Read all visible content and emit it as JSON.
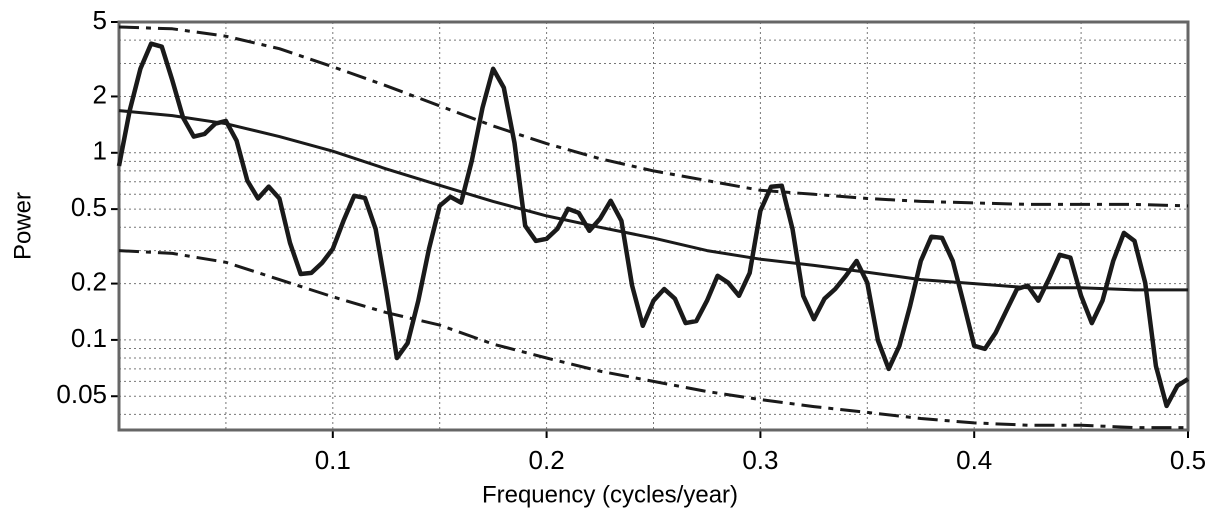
{
  "chart_data": {
    "type": "line",
    "xlabel": "Frequency (cycles/year)",
    "ylabel": "Power",
    "log_y": true,
    "grid": true,
    "xlim": [
      0,
      0.5
    ],
    "xticks": [
      0.1,
      0.2,
      0.3,
      0.4,
      0.5
    ],
    "xminor": [
      0.05,
      0.15,
      0.25,
      0.35,
      0.45
    ],
    "ylim": [
      0.033,
      5
    ],
    "yticks": [
      0.05,
      0.1,
      0.2,
      0.5,
      1,
      2,
      5
    ],
    "yminor": [
      0.04,
      0.06,
      0.07,
      0.08,
      0.09,
      0.3,
      0.4,
      0.6,
      0.7,
      0.8,
      0.9,
      3,
      4
    ],
    "series": [
      {
        "color": "#1a1a1a",
        "width": 4.5,
        "style": "solid",
        "x": [
          0,
          0.005,
          0.01,
          0.015,
          0.02,
          0.025,
          0.03,
          0.035,
          0.04,
          0.045,
          0.05,
          0.055,
          0.06,
          0.065,
          0.07,
          0.075,
          0.08,
          0.085,
          0.09,
          0.095,
          0.1,
          0.105,
          0.11,
          0.115,
          0.12,
          0.125,
          0.13,
          0.135,
          0.14,
          0.145,
          0.15,
          0.155,
          0.16,
          0.165,
          0.17,
          0.175,
          0.18,
          0.185,
          0.19,
          0.195,
          0.2,
          0.205,
          0.21,
          0.215,
          0.22,
          0.225,
          0.23,
          0.235,
          0.24,
          0.245,
          0.25,
          0.255,
          0.26,
          0.265,
          0.27,
          0.275,
          0.28,
          0.285,
          0.29,
          0.295,
          0.3,
          0.305,
          0.31,
          0.315,
          0.32,
          0.325,
          0.33,
          0.335,
          0.34,
          0.345,
          0.35,
          0.355,
          0.36,
          0.365,
          0.37,
          0.375,
          0.38,
          0.385,
          0.39,
          0.395,
          0.4,
          0.405,
          0.41,
          0.415,
          0.42,
          0.425,
          0.43,
          0.435,
          0.44,
          0.445,
          0.45,
          0.455,
          0.46,
          0.465,
          0.47,
          0.475,
          0.48,
          0.485,
          0.49,
          0.495,
          0.5
        ],
        "values": [
          0.85,
          1.68,
          2.81,
          3.83,
          3.69,
          2.43,
          1.54,
          1.22,
          1.26,
          1.43,
          1.48,
          1.16,
          0.71,
          0.57,
          0.66,
          0.57,
          0.33,
          0.225,
          0.228,
          0.258,
          0.307,
          0.433,
          0.589,
          0.574,
          0.392,
          0.183,
          0.08,
          0.096,
          0.162,
          0.307,
          0.521,
          0.582,
          0.541,
          0.906,
          1.74,
          2.81,
          2.23,
          1.13,
          0.407,
          0.338,
          0.347,
          0.392,
          0.502,
          0.478,
          0.383,
          0.444,
          0.554,
          0.433,
          0.195,
          0.119,
          0.162,
          0.187,
          0.166,
          0.123,
          0.126,
          0.162,
          0.22,
          0.202,
          0.172,
          0.228,
          0.49,
          0.658,
          0.666,
          0.392,
          0.172,
          0.129,
          0.166,
          0.187,
          0.22,
          0.264,
          0.202,
          0.099,
          0.07,
          0.093,
          0.152,
          0.264,
          0.356,
          0.351,
          0.264,
          0.158,
          0.093,
          0.0895,
          0.109,
          0.143,
          0.187,
          0.195,
          0.162,
          0.212,
          0.285,
          0.275,
          0.172,
          0.123,
          0.162,
          0.264,
          0.373,
          0.338,
          0.202,
          0.0726,
          0.0444,
          0.0568,
          0.0618
        ]
      },
      {
        "color": "#1a1a1a",
        "width": 3,
        "style": "solid",
        "x": [
          0,
          0.025,
          0.05,
          0.075,
          0.1,
          0.125,
          0.15,
          0.175,
          0.2,
          0.225,
          0.25,
          0.275,
          0.3,
          0.325,
          0.35,
          0.375,
          0.4,
          0.425,
          0.45,
          0.475,
          0.5
        ],
        "values": [
          1.68,
          1.58,
          1.43,
          1.22,
          1.02,
          0.82,
          0.67,
          0.55,
          0.46,
          0.4,
          0.35,
          0.3,
          0.27,
          0.25,
          0.23,
          0.21,
          0.2,
          0.19,
          0.19,
          0.185,
          0.185
        ]
      },
      {
        "color": "#1a1a1a",
        "width": 3,
        "style": "dashdot",
        "x": [
          0,
          0.025,
          0.05,
          0.075,
          0.1,
          0.125,
          0.15,
          0.175,
          0.2,
          0.225,
          0.25,
          0.275,
          0.3,
          0.325,
          0.35,
          0.375,
          0.4,
          0.425,
          0.45,
          0.475,
          0.5
        ],
        "values": [
          4.7,
          4.6,
          4.2,
          3.6,
          2.88,
          2.28,
          1.78,
          1.39,
          1.12,
          0.93,
          0.8,
          0.71,
          0.63,
          0.6,
          0.57,
          0.55,
          0.54,
          0.53,
          0.53,
          0.53,
          0.52
        ]
      },
      {
        "color": "#1a1a1a",
        "width": 3,
        "style": "dashdot",
        "x": [
          0,
          0.025,
          0.05,
          0.075,
          0.1,
          0.125,
          0.15,
          0.175,
          0.2,
          0.225,
          0.25,
          0.275,
          0.3,
          0.325,
          0.35,
          0.375,
          0.4,
          0.425,
          0.45,
          0.475,
          0.5
        ],
        "values": [
          0.3,
          0.29,
          0.26,
          0.21,
          0.17,
          0.14,
          0.12,
          0.095,
          0.08,
          0.068,
          0.06,
          0.053,
          0.048,
          0.044,
          0.041,
          0.038,
          0.036,
          0.035,
          0.035,
          0.034,
          0.034
        ]
      }
    ]
  }
}
